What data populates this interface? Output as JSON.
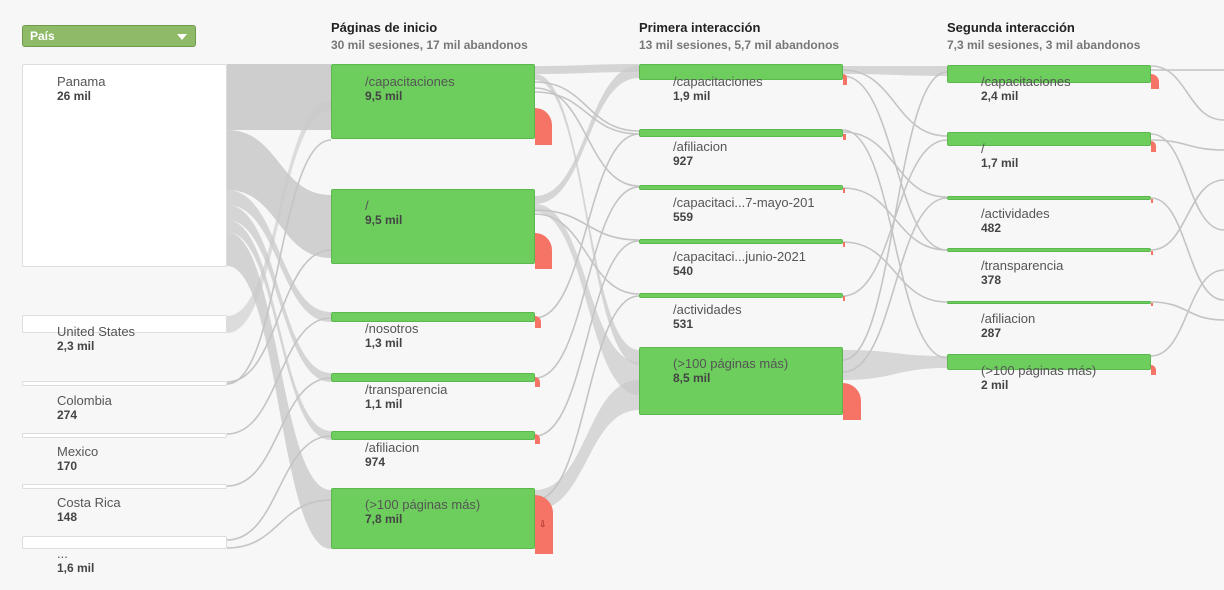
{
  "dimension_selector": {
    "label": "País"
  },
  "columns": [
    {
      "title": "Páginas de inicio",
      "subtitle": "30 mil sesiones, 17 mil abandonos"
    },
    {
      "title": "Primera interacción",
      "subtitle": "13 mil sesiones, 5,7 mil abandonos"
    },
    {
      "title": "Segunda interacción",
      "subtitle": "7,3 mil sesiones, 3 mil abandonos"
    }
  ],
  "countries": [
    {
      "name": "Panama",
      "value": "26 mil"
    },
    {
      "name": "United States",
      "value": "2,3 mil"
    },
    {
      "name": "Colombia",
      "value": "274"
    },
    {
      "name": "Mexico",
      "value": "170"
    },
    {
      "name": "Costa Rica",
      "value": "148"
    },
    {
      "name": "...",
      "value": "1,6 mil"
    }
  ],
  "start_pages": [
    {
      "name": "/capacitaciones",
      "value": "9,5 mil"
    },
    {
      "name": "/",
      "value": "9,5 mil"
    },
    {
      "name": "/nosotros",
      "value": "1,3 mil"
    },
    {
      "name": "/transparencia",
      "value": "1,1 mil"
    },
    {
      "name": "/afiliacion",
      "value": "974"
    },
    {
      "name": "(>100 páginas más)",
      "value": "7,8 mil"
    }
  ],
  "first_interaction": [
    {
      "name": "/capacitaciones",
      "value": "1,9 mil"
    },
    {
      "name": "/afiliacion",
      "value": "927"
    },
    {
      "name": "/capacitaci...7-mayo-201",
      "value": "559"
    },
    {
      "name": "/capacitaci...junio-2021",
      "value": "540"
    },
    {
      "name": "/actividades",
      "value": "531"
    },
    {
      "name": "(>100 páginas más)",
      "value": "8,5 mil"
    }
  ],
  "second_interaction": [
    {
      "name": "/capacitaciones",
      "value": "2,4 mil"
    },
    {
      "name": "/",
      "value": "1,7 mil"
    },
    {
      "name": "/actividades",
      "value": "482"
    },
    {
      "name": "/transparencia",
      "value": "378"
    },
    {
      "name": "/afiliacion",
      "value": "287"
    },
    {
      "name": "(>100 páginas más)",
      "value": "2 mil"
    }
  ],
  "colors": {
    "node": "#6dce5d",
    "dropoff": "#f57466",
    "flow": "#c9c9c9",
    "country": "#ffffff"
  }
}
